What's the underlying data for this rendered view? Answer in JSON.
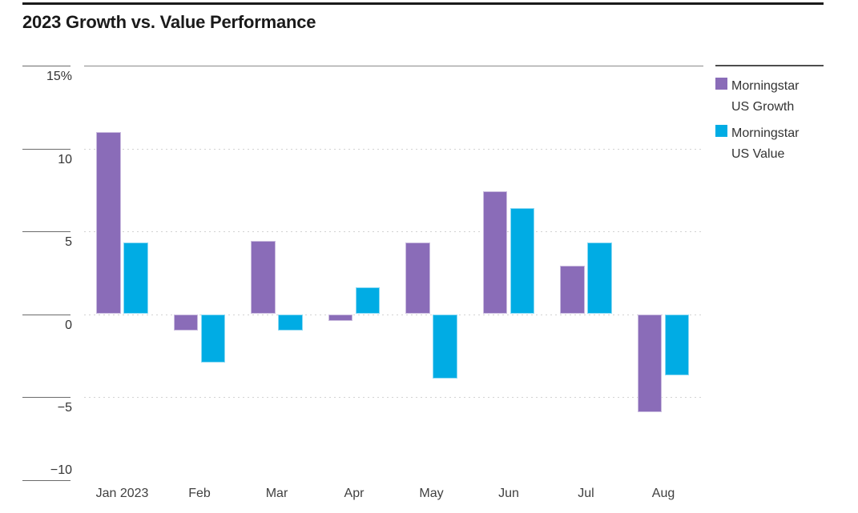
{
  "page": {
    "title": "2023 Growth vs. Value Performance"
  },
  "chart_data": {
    "type": "bar",
    "title": "2023 Growth vs. Value Performance",
    "categories": [
      "Jan 2023",
      "Feb",
      "Mar",
      "Apr",
      "May",
      "Jun",
      "Jul",
      "Aug"
    ],
    "series": [
      {
        "name": "Morningstar US Growth",
        "color": "#8A6CB8",
        "values": [
          11.0,
          -1.0,
          4.4,
          -0.4,
          4.3,
          7.4,
          2.9,
          -5.9
        ]
      },
      {
        "name": "Morningstar US Value",
        "color": "#00ACE4",
        "values": [
          4.3,
          -2.9,
          -1.0,
          1.6,
          -3.9,
          6.4,
          4.3,
          -3.7
        ]
      }
    ],
    "xlabel": "",
    "ylabel": "",
    "ylim": [
      -10,
      15
    ],
    "y_unit": "%",
    "y_ticks": [
      {
        "label": "15%",
        "value": 15
      },
      {
        "label": "10",
        "value": 10
      },
      {
        "label": "5",
        "value": 5
      },
      {
        "label": "0",
        "value": 0
      },
      {
        "label": "−5",
        "value": -5
      },
      {
        "label": "−10",
        "value": -10
      }
    ],
    "grid": "horizontal-dotted",
    "legend_position": "top-right"
  },
  "legend": {
    "items": [
      {
        "line1": "Morningstar",
        "line2": "US Growth",
        "color": "#8A6CB8"
      },
      {
        "line1": "Morningstar",
        "line2": "US Value",
        "color": "#00ACE4"
      }
    ]
  },
  "colors": {
    "growth": "#8A6CB8",
    "value": "#00ACE4",
    "title_rule": "#1a1a1a",
    "gridline": "#d2d2d2",
    "axis_text": "#333333"
  }
}
